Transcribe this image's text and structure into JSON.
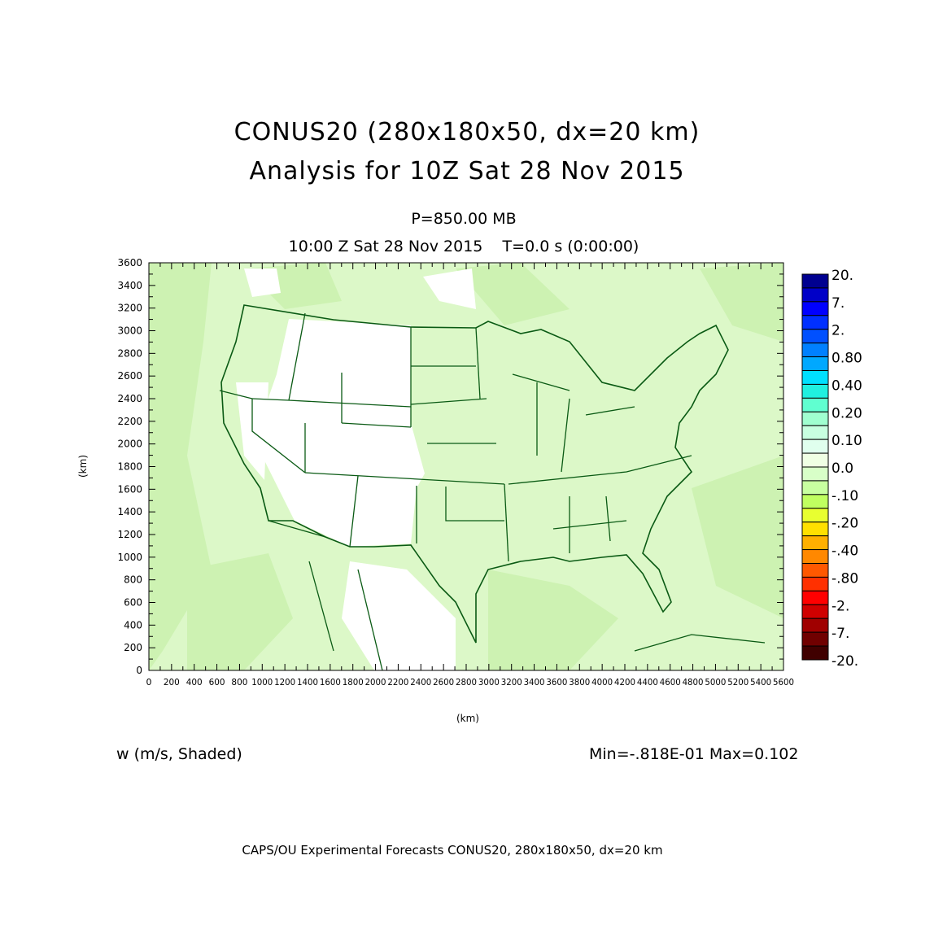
{
  "header": {
    "title_line1": "CONUS20 (280x180x50, dx=20 km)",
    "title_line2": "Analysis for 10Z Sat 28 Nov 2015",
    "level": "P=850.00 MB",
    "time": "10:00 Z Sat 28 Nov 2015    T=0.0 s (0:00:00)"
  },
  "plot": {
    "xlabel": "(km)",
    "ylabel": "(km)",
    "xlim": [
      0,
      5600
    ],
    "ylim": [
      0,
      3600
    ],
    "x_ticks": [
      0,
      200,
      400,
      600,
      800,
      1000,
      1200,
      1400,
      1600,
      1800,
      2000,
      2200,
      2400,
      2600,
      2800,
      3000,
      3200,
      3400,
      3600,
      3800,
      4000,
      4200,
      4400,
      4600,
      4800,
      5000,
      5200,
      5400,
      5600
    ],
    "y_ticks": [
      0,
      200,
      400,
      600,
      800,
      1000,
      1200,
      1400,
      1600,
      1800,
      2000,
      2200,
      2400,
      2600,
      2800,
      3000,
      3200,
      3400,
      3600
    ],
    "field_color": "#dcf8c8",
    "field_patch_color": "#cdf2b2",
    "boundary_color": "#0a5a14"
  },
  "colorbar": {
    "labels": [
      "20.",
      "7.",
      "2.",
      "0.80",
      "0.40",
      "0.20",
      "0.10",
      "0.0",
      "-.10",
      "-.20",
      "-.40",
      "-.80",
      "-2.",
      "-7.",
      "-20."
    ],
    "colors": [
      "#000090",
      "#0000c8",
      "#0000ff",
      "#0030ff",
      "#0050ff",
      "#0080ff",
      "#00a8ff",
      "#00e0ff",
      "#20f0e0",
      "#60ffd0",
      "#a0ffd0",
      "#c8ffe0",
      "#e0ffee",
      "#f0ffe4",
      "#d8ffc8",
      "#c8ffa0",
      "#c0ff60",
      "#e8ff30",
      "#ffe000",
      "#ffb000",
      "#ff8800",
      "#ff5800",
      "#ff3000",
      "#ff0000",
      "#d00000",
      "#a00000",
      "#700000",
      "#400000"
    ]
  },
  "footer": {
    "variable": "w (m/s, Shaded)",
    "minmax": "Min=-.818E-01 Max=0.102",
    "credit": "CAPS/OU Experimental Forecasts  CONUS20, 280x180x50, dx=20 km"
  }
}
